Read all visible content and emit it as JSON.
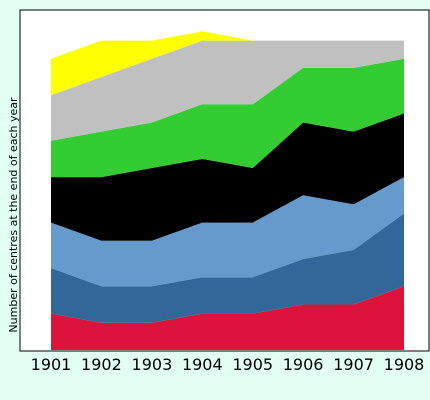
{
  "chart_data": {
    "type": "area",
    "stacked": true,
    "ylabel": "Number of centres at the end of each year",
    "xlabel": "",
    "title": "",
    "x": [
      "1901",
      "1902",
      "1903",
      "1904",
      "1905",
      "1906",
      "1907",
      "1908"
    ],
    "y_max": 34.5,
    "grid": false,
    "legend": "none",
    "series": [
      {
        "color": "#dc143c",
        "values": [
          4,
          3,
          3,
          4,
          4,
          5,
          5,
          7
        ]
      },
      {
        "color": "#336699",
        "values": [
          5,
          4,
          4,
          4,
          4,
          5,
          6,
          8
        ]
      },
      {
        "color": "#6699cc",
        "values": [
          5,
          5,
          5,
          6,
          6,
          7,
          5,
          4
        ]
      },
      {
        "color": "#000000",
        "values": [
          5,
          7,
          8,
          7,
          6,
          8,
          8,
          7
        ]
      },
      {
        "color": "#33cc33",
        "values": [
          4,
          5,
          5,
          6,
          7,
          6,
          7,
          6
        ]
      },
      {
        "color": "#c0c0c0",
        "values": [
          5,
          6,
          7,
          7,
          7,
          3,
          3,
          2
        ]
      },
      {
        "color": "#ffff00",
        "values": [
          4,
          4,
          2,
          1,
          0,
          0,
          0,
          0
        ]
      }
    ]
  }
}
